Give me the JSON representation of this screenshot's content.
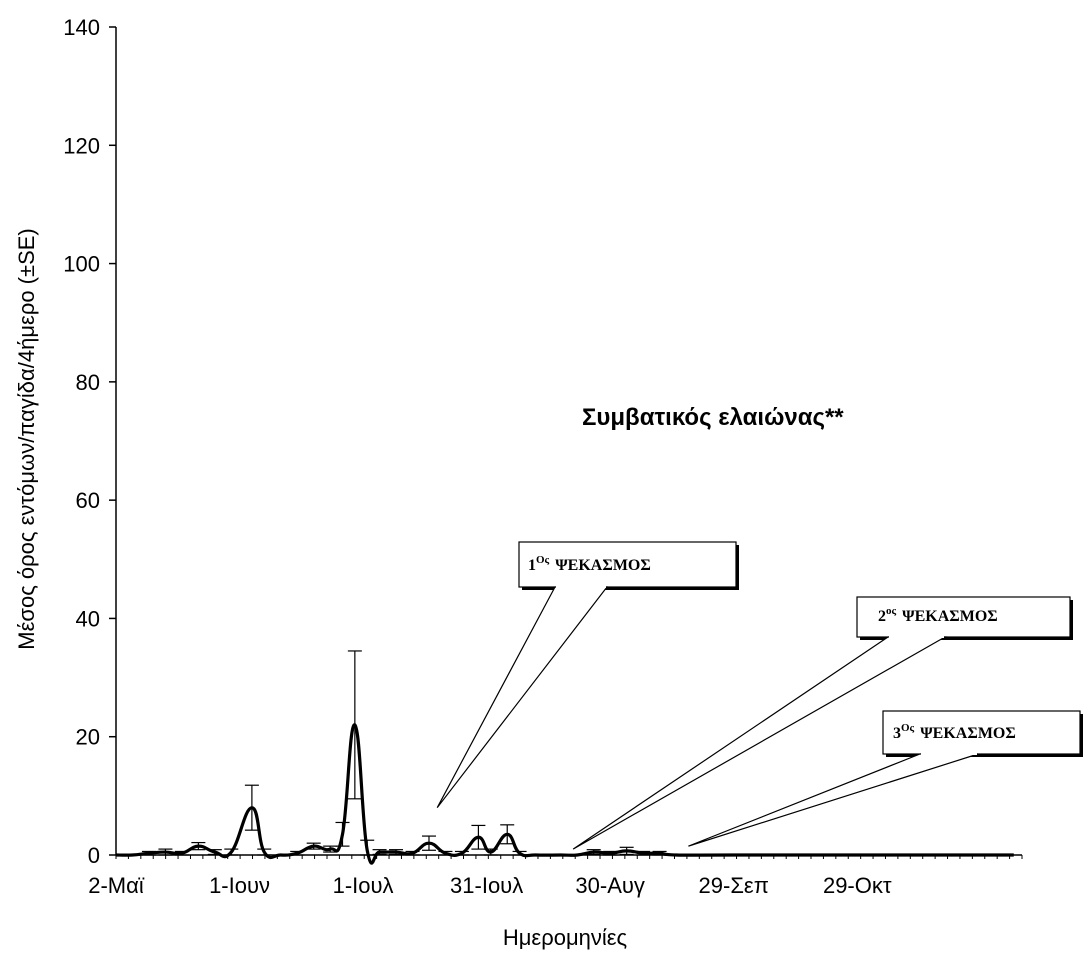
{
  "chart_data": {
    "type": "line",
    "title": "Συμβατικός ελαιώνας**",
    "xlabel": "Ημερομηνίες",
    "ylabel": "Μέσος όρος εντόμων/παγίδα/4ήμερο (±SE)",
    "ylim": [
      0,
      140
    ],
    "yticks": [
      "0",
      "20",
      "40",
      "60",
      "80",
      "100",
      "120",
      "140"
    ],
    "x_tick_labels": [
      "2-Μαϊ",
      "1-Ιουν",
      "1-Ιουλ",
      "31-Ιουλ",
      "30-Αυγ",
      "29-Σεπ",
      "29-Οκτ"
    ],
    "x_tick_days": [
      0,
      30,
      60,
      90,
      120,
      150,
      180
    ],
    "xlim_days": [
      0,
      220
    ],
    "grid": false,
    "series": [
      {
        "points": [
          {
            "d": 0,
            "y": 0,
            "se": 0
          },
          {
            "d": 4,
            "y": 0,
            "se": 0
          },
          {
            "d": 8,
            "y": 0.3,
            "se": 0.3
          },
          {
            "d": 12,
            "y": 0.5,
            "se": 0.5
          },
          {
            "d": 16,
            "y": 0.3,
            "se": 0.3
          },
          {
            "d": 20,
            "y": 1.5,
            "se": 0.6
          },
          {
            "d": 24,
            "y": 0.5,
            "se": 0.4
          },
          {
            "d": 28,
            "y": 0.5,
            "se": 0.5
          },
          {
            "d": 33,
            "y": 8,
            "se": 3.8
          },
          {
            "d": 36,
            "y": 0.5,
            "se": 0.5
          },
          {
            "d": 40,
            "y": 0,
            "se": 0
          },
          {
            "d": 44,
            "y": 0.3,
            "se": 0.3
          },
          {
            "d": 48,
            "y": 1.5,
            "se": 0.5
          },
          {
            "d": 52,
            "y": 1,
            "se": 0.5
          },
          {
            "d": 55,
            "y": 3.5,
            "se": 2
          },
          {
            "d": 58,
            "y": 22,
            "se": 12.5
          },
          {
            "d": 61,
            "y": 0.8,
            "se": 1.7
          },
          {
            "d": 64,
            "y": 0.5,
            "se": 0.4
          },
          {
            "d": 68,
            "y": 0.5,
            "se": 0.4
          },
          {
            "d": 72,
            "y": 0.3,
            "se": 0.3
          },
          {
            "d": 76,
            "y": 2,
            "se": 1.2
          },
          {
            "d": 80,
            "y": 0.3,
            "se": 0.3
          },
          {
            "d": 84,
            "y": 0.3,
            "se": 0.3
          },
          {
            "d": 88,
            "y": 3,
            "se": 2
          },
          {
            "d": 91,
            "y": 0.5,
            "se": 0.5
          },
          {
            "d": 95,
            "y": 3.5,
            "se": 1.6
          },
          {
            "d": 98,
            "y": 0.3,
            "se": 0.3
          },
          {
            "d": 102,
            "y": 0,
            "se": 0
          },
          {
            "d": 108,
            "y": 0,
            "se": 0
          },
          {
            "d": 112,
            "y": 0,
            "se": 0
          },
          {
            "d": 116,
            "y": 0.5,
            "se": 0.4
          },
          {
            "d": 120,
            "y": 0.3,
            "se": 0.3
          },
          {
            "d": 124,
            "y": 0.7,
            "se": 0.6
          },
          {
            "d": 128,
            "y": 0.3,
            "se": 0.3
          },
          {
            "d": 132,
            "y": 0.3,
            "se": 0.3
          },
          {
            "d": 136,
            "y": 0,
            "se": 0
          },
          {
            "d": 150,
            "y": 0,
            "se": 0
          },
          {
            "d": 180,
            "y": 0,
            "se": 0
          },
          {
            "d": 218,
            "y": 0,
            "se": 0
          }
        ]
      }
    ],
    "annotations": [
      {
        "num": "1",
        "sup": "Ος",
        "text": "ΨΕΚΑΣΜΟΣ",
        "target_day": 78,
        "target_y": 8
      },
      {
        "num": "2",
        "sup": "ος",
        "text": "ΨΕΚΑΣΜΟΣ",
        "target_day": 111,
        "target_y": 1
      },
      {
        "num": "3",
        "sup": "Ος",
        "text": "ΨΕΚΑΣΜΟΣ",
        "target_day": 139,
        "target_y": 1.5
      }
    ],
    "colors": {
      "line": "#000000",
      "axis": "#000000",
      "background": "#ffffff"
    }
  }
}
